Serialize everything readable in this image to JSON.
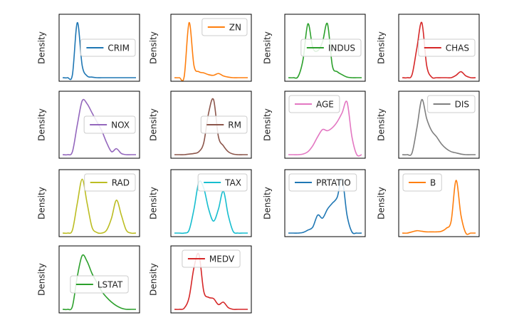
{
  "chart_data": [
    {
      "type": "line",
      "ylabel": "Density",
      "legend": "center right",
      "x": [
        0,
        1,
        2,
        3,
        4,
        5,
        6,
        7,
        8,
        9,
        10,
        11,
        12,
        13,
        14,
        15
      ],
      "xlim": [
        0,
        15
      ],
      "ylim": [
        0,
        1
      ],
      "series": [
        {
          "name": "CRIM",
          "color": "#1f77b4",
          "values": [
            0,
            0,
            0.05,
            0.92,
            0.2,
            0.03,
            0.01,
            0,
            0,
            0,
            0,
            0,
            0,
            0,
            0,
            0
          ]
        }
      ]
    },
    {
      "type": "line",
      "ylabel": "Density",
      "legend": "upper right",
      "x": [
        0,
        1,
        2,
        3,
        4,
        5,
        6,
        7,
        8,
        9,
        10,
        11,
        12,
        13,
        14,
        15
      ],
      "xlim": [
        0,
        15
      ],
      "ylim": [
        0,
        1
      ],
      "series": [
        {
          "name": "ZN",
          "color": "#ff7f0e",
          "values": [
            0,
            0,
            0.02,
            0.92,
            0.2,
            0.1,
            0.08,
            0.05,
            0.04,
            0.07,
            0.03,
            0.01,
            0,
            0,
            0,
            0
          ]
        }
      ]
    },
    {
      "type": "line",
      "ylabel": "Density",
      "legend": "center right",
      "x": [
        0,
        1,
        2,
        3,
        4,
        5,
        6,
        7,
        8,
        9,
        10,
        11,
        12,
        13,
        14,
        15
      ],
      "xlim": [
        0,
        15
      ],
      "ylim": [
        0,
        1
      ],
      "series": [
        {
          "name": "INDUS",
          "color": "#2ca02c",
          "values": [
            0,
            0,
            0.02,
            0.3,
            0.9,
            0.5,
            0.45,
            0.6,
            0.9,
            0.2,
            0.1,
            0.05,
            0.01,
            0,
            0,
            0
          ]
        }
      ]
    },
    {
      "type": "line",
      "ylabel": "Density",
      "legend": "center right",
      "x": [
        0,
        1,
        2,
        3,
        4,
        5,
        6,
        7,
        8,
        9,
        10,
        11,
        12,
        13,
        14,
        15
      ],
      "xlim": [
        0,
        15
      ],
      "ylim": [
        0,
        1
      ],
      "series": [
        {
          "name": "CHAS",
          "color": "#d62728",
          "values": [
            0,
            0,
            0.05,
            0.5,
            0.92,
            0.2,
            0.01,
            0,
            0,
            0,
            0,
            0.04,
            0.1,
            0.03,
            0,
            0
          ]
        }
      ]
    },
    {
      "type": "line",
      "ylabel": "Density",
      "legend": "center right",
      "x": [
        0,
        1,
        2,
        3,
        4,
        5,
        6,
        7,
        8,
        9,
        10,
        11,
        12,
        13,
        14,
        15
      ],
      "xlim": [
        0,
        15
      ],
      "ylim": [
        0,
        1
      ],
      "series": [
        {
          "name": "NOX",
          "color": "#9467bd",
          "values": [
            0,
            0,
            0.05,
            0.5,
            0.9,
            0.85,
            0.7,
            0.55,
            0.4,
            0.2,
            0.05,
            0.1,
            0.02,
            0,
            0,
            0
          ]
        }
      ]
    },
    {
      "type": "line",
      "ylabel": "Density",
      "legend": "center right",
      "x": [
        0,
        1,
        2,
        3,
        4,
        5,
        6,
        7,
        8,
        9,
        10,
        11,
        12,
        13,
        14,
        15
      ],
      "xlim": [
        0,
        15
      ],
      "ylim": [
        0,
        1
      ],
      "series": [
        {
          "name": "RM",
          "color": "#8c564b",
          "values": [
            0,
            0,
            0,
            0.01,
            0.02,
            0.05,
            0.2,
            0.7,
            0.92,
            0.3,
            0.15,
            0.05,
            0.01,
            0,
            0,
            0
          ]
        }
      ]
    },
    {
      "type": "line",
      "ylabel": "Density",
      "legend": "upper left",
      "x": [
        0,
        1,
        2,
        3,
        4,
        5,
        6,
        7,
        8,
        9,
        10,
        11,
        12,
        13,
        14,
        15
      ],
      "xlim": [
        0,
        15
      ],
      "ylim": [
        0,
        1
      ],
      "series": [
        {
          "name": "AGE",
          "color": "#e377c2",
          "values": [
            0,
            0,
            0,
            0.01,
            0.05,
            0.15,
            0.3,
            0.42,
            0.4,
            0.45,
            0.55,
            0.7,
            0.88,
            0.3,
            0,
            0
          ]
        }
      ]
    },
    {
      "type": "line",
      "ylabel": "Density",
      "legend": "upper right",
      "x": [
        0,
        1,
        2,
        3,
        4,
        5,
        6,
        7,
        8,
        9,
        10,
        11,
        12,
        13,
        14,
        15
      ],
      "xlim": [
        0,
        15
      ],
      "ylim": [
        0,
        1
      ],
      "series": [
        {
          "name": "DIS",
          "color": "#7f7f7f",
          "values": [
            0,
            0,
            0.03,
            0.45,
            0.92,
            0.6,
            0.4,
            0.3,
            0.18,
            0.1,
            0.05,
            0.03,
            0.01,
            0,
            0,
            0
          ]
        }
      ]
    },
    {
      "type": "line",
      "ylabel": "Density",
      "legend": "upper right",
      "x": [
        0,
        1,
        2,
        3,
        4,
        5,
        6,
        7,
        8,
        9,
        10,
        11,
        12,
        13,
        14,
        15
      ],
      "xlim": [
        0,
        15
      ],
      "ylim": [
        0,
        1
      ],
      "series": [
        {
          "name": "RAD",
          "color": "#bcbd22",
          "values": [
            0,
            0,
            0.05,
            0.5,
            0.9,
            0.5,
            0.1,
            0.01,
            0,
            0.05,
            0.25,
            0.55,
            0.3,
            0.05,
            0,
            0
          ]
        }
      ]
    },
    {
      "type": "line",
      "ylabel": "Density",
      "legend": "upper right",
      "x": [
        0,
        1,
        2,
        3,
        4,
        5,
        6,
        7,
        8,
        9,
        10,
        11,
        12,
        13,
        14,
        15
      ],
      "xlim": [
        0,
        15
      ],
      "ylim": [
        0,
        1
      ],
      "series": [
        {
          "name": "TAX",
          "color": "#17becf",
          "values": [
            0,
            0,
            0,
            0.05,
            0.4,
            0.85,
            0.75,
            0.4,
            0.2,
            0.4,
            0.7,
            0.3,
            0.03,
            0,
            0,
            0
          ]
        }
      ]
    },
    {
      "type": "line",
      "ylabel": "Density",
      "legend": "upper left",
      "x": [
        0,
        1,
        2,
        3,
        4,
        5,
        6,
        7,
        8,
        9,
        10,
        11,
        12,
        13,
        14,
        15
      ],
      "xlim": [
        0,
        15
      ],
      "ylim": [
        0,
        1
      ],
      "series": [
        {
          "name": "PRTATIO",
          "color": "#1f77b4",
          "values": [
            0,
            0,
            0,
            0.01,
            0.05,
            0.1,
            0.3,
            0.25,
            0.4,
            0.5,
            0.6,
            0.9,
            0.3,
            0.02,
            0,
            0
          ]
        }
      ]
    },
    {
      "type": "line",
      "ylabel": "Density",
      "legend": "upper left",
      "x": [
        0,
        1,
        2,
        3,
        4,
        5,
        6,
        7,
        8,
        9,
        10,
        11,
        12,
        13,
        14,
        15
      ],
      "xlim": [
        0,
        15
      ],
      "ylim": [
        0,
        1
      ],
      "series": [
        {
          "name": "B",
          "color": "#ff7f0e",
          "values": [
            0,
            0,
            0.02,
            0.04,
            0.03,
            0.02,
            0.02,
            0.02,
            0.03,
            0.08,
            0.2,
            0.88,
            0.3,
            0,
            0,
            0
          ]
        }
      ]
    },
    {
      "type": "line",
      "ylabel": "Density",
      "legend": "lower center",
      "x": [
        0,
        1,
        2,
        3,
        4,
        5,
        6,
        7,
        8,
        9,
        10,
        11,
        12,
        13,
        14,
        15
      ],
      "xlim": [
        0,
        15
      ],
      "ylim": [
        0,
        1
      ],
      "series": [
        {
          "name": "LSTAT",
          "color": "#2ca02c",
          "values": [
            0,
            0,
            0.05,
            0.55,
            0.9,
            0.8,
            0.6,
            0.45,
            0.3,
            0.2,
            0.12,
            0.06,
            0.02,
            0,
            0,
            0
          ]
        }
      ]
    },
    {
      "type": "line",
      "ylabel": "Density",
      "legend": "upper center",
      "x": [
        0,
        1,
        2,
        3,
        4,
        5,
        6,
        7,
        8,
        9,
        10,
        11,
        12,
        13,
        14,
        15
      ],
      "xlim": [
        0,
        15
      ],
      "ylim": [
        0,
        1
      ],
      "series": [
        {
          "name": "MEDV",
          "color": "#d62728",
          "values": [
            0,
            0,
            0.02,
            0.2,
            0.7,
            0.92,
            0.3,
            0.2,
            0.18,
            0.08,
            0.12,
            0.03,
            0,
            0,
            0,
            0
          ]
        }
      ]
    }
  ]
}
